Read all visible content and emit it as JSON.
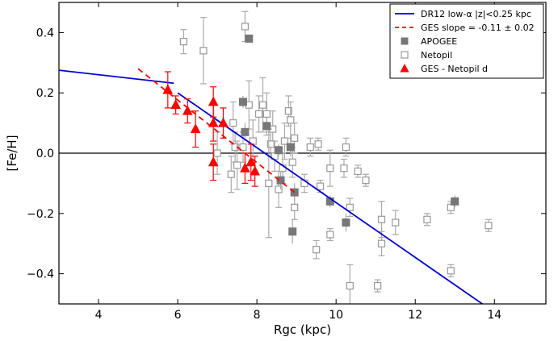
{
  "chart_data": {
    "type": "scatter",
    "xlabel": "Rgc (kpc)",
    "ylabel": "[Fe/H]",
    "xlim": [
      3,
      15.3
    ],
    "ylim": [
      -0.5,
      0.5
    ],
    "x_ticks": [
      4,
      6,
      8,
      10,
      12,
      14
    ],
    "y_ticks": [
      -0.4,
      -0.2,
      0.0,
      0.2,
      0.4
    ],
    "x_tick_labels": [
      "4",
      "6",
      "8",
      "10",
      "12",
      "14"
    ],
    "y_tick_labels": [
      "−0.4",
      "−0.2",
      "0.0",
      "0.2",
      "0.4"
    ],
    "zero_line": true,
    "legend_position": "top-right",
    "colors": {
      "dr12": "#0000dd",
      "ges": "#ff0000",
      "apogee": "#777777",
      "netopil": "#999999",
      "errorbar": "#aaaaaa"
    },
    "series": [
      {
        "name": "DR12 low-α |z|<0.25 kpc",
        "kind": "line",
        "segments": [
          [
            [
              3.0,
              0.275
            ],
            [
              5.9,
              0.232
            ]
          ],
          [
            [
              6.0,
              0.2
            ],
            [
              13.75,
              -0.505
            ]
          ]
        ]
      },
      {
        "name": "GES slope = -0.11 ± 0.02",
        "kind": "dashed-line",
        "points": [
          [
            5.0,
            0.28
          ],
          [
            9.0,
            -0.135
          ]
        ]
      },
      {
        "name": "APOGEE",
        "kind": "filled-square",
        "points": [
          {
            "x": 7.8,
            "y": 0.38
          },
          {
            "x": 7.65,
            "y": 0.17,
            "err": 0.02
          },
          {
            "x": 7.7,
            "y": 0.07,
            "err": 0.03
          },
          {
            "x": 8.25,
            "y": 0.09,
            "err": 0.03
          },
          {
            "x": 8.85,
            "y": 0.02,
            "err": 0.03
          },
          {
            "x": 8.55,
            "y": 0.01,
            "err": 0.02
          },
          {
            "x": 8.6,
            "y": -0.09,
            "err": 0.03
          },
          {
            "x": 8.95,
            "y": -0.13,
            "err": 0.03
          },
          {
            "x": 8.9,
            "y": -0.26,
            "err": 0.04
          },
          {
            "x": 9.85,
            "y": -0.16,
            "err": 0.02
          },
          {
            "x": 10.25,
            "y": -0.23,
            "err": 0.03
          },
          {
            "x": 13.0,
            "y": -0.16,
            "err": 0.02
          }
        ]
      },
      {
        "name": "Netopil",
        "kind": "open-square",
        "points": [
          {
            "x": 6.15,
            "y": 0.37,
            "err": 0.04
          },
          {
            "x": 6.65,
            "y": 0.34,
            "err": 0.11
          },
          {
            "x": 7.7,
            "y": 0.42,
            "err": 0.05
          },
          {
            "x": 7.8,
            "y": 0.16,
            "err": 0.08
          },
          {
            "x": 7.4,
            "y": 0.1,
            "err": 0.07
          },
          {
            "x": 7.45,
            "y": 0.02,
            "err": 0.05
          },
          {
            "x": 7.0,
            "y": 0.0,
            "err": 0.07
          },
          {
            "x": 7.35,
            "y": -0.07,
            "err": 0.06
          },
          {
            "x": 7.5,
            "y": -0.04,
            "err": 0.08
          },
          {
            "x": 7.65,
            "y": 0.02,
            "err": 0.05
          },
          {
            "x": 7.9,
            "y": 0.04,
            "err": 0.07
          },
          {
            "x": 8.05,
            "y": 0.13,
            "err": 0.06
          },
          {
            "x": 8.15,
            "y": 0.16,
            "err": 0.09
          },
          {
            "x": 8.25,
            "y": 0.13,
            "err": 0.07
          },
          {
            "x": 8.4,
            "y": 0.08,
            "err": 0.06
          },
          {
            "x": 8.35,
            "y": 0.03,
            "err": 0.04
          },
          {
            "x": 8.45,
            "y": -0.01,
            "err": 0.05
          },
          {
            "x": 8.3,
            "y": -0.1,
            "err": 0.18
          },
          {
            "x": 8.55,
            "y": -0.12,
            "err": 0.06
          },
          {
            "x": 8.65,
            "y": -0.05,
            "err": 0.05
          },
          {
            "x": 8.7,
            "y": 0.04,
            "err": 0.06
          },
          {
            "x": 8.8,
            "y": 0.14,
            "err": 0.05
          },
          {
            "x": 8.85,
            "y": 0.11,
            "err": 0.06
          },
          {
            "x": 8.95,
            "y": 0.05,
            "err": 0.05
          },
          {
            "x": 8.9,
            "y": -0.03,
            "err": 0.05
          },
          {
            "x": 8.95,
            "y": -0.18,
            "err": 0.04
          },
          {
            "x": 9.2,
            "y": -0.1,
            "err": 0.03
          },
          {
            "x": 9.35,
            "y": 0.02,
            "err": 0.03
          },
          {
            "x": 9.55,
            "y": 0.03,
            "err": 0.02
          },
          {
            "x": 9.6,
            "y": -0.11,
            "err": 0.02
          },
          {
            "x": 9.5,
            "y": -0.32,
            "err": 0.03
          },
          {
            "x": 9.85,
            "y": -0.05,
            "err": 0.06
          },
          {
            "x": 9.85,
            "y": -0.27,
            "err": 0.02
          },
          {
            "x": 10.25,
            "y": 0.02,
            "err": 0.03
          },
          {
            "x": 10.2,
            "y": -0.05,
            "err": 0.03
          },
          {
            "x": 10.35,
            "y": -0.18,
            "err": 0.03
          },
          {
            "x": 10.35,
            "y": -0.44,
            "err": 0.07
          },
          {
            "x": 10.55,
            "y": -0.06,
            "err": 0.02
          },
          {
            "x": 10.75,
            "y": -0.09,
            "err": 0.02
          },
          {
            "x": 11.15,
            "y": -0.22,
            "err": 0.06
          },
          {
            "x": 11.15,
            "y": -0.3,
            "err": 0.04
          },
          {
            "x": 11.05,
            "y": -0.44,
            "err": 0.02
          },
          {
            "x": 11.5,
            "y": -0.23,
            "err": 0.04
          },
          {
            "x": 12.3,
            "y": -0.22,
            "err": 0.02
          },
          {
            "x": 12.9,
            "y": -0.18,
            "err": 0.02
          },
          {
            "x": 12.9,
            "y": -0.39,
            "err": 0.02
          },
          {
            "x": 13.85,
            "y": -0.24,
            "err": 0.02
          }
        ]
      },
      {
        "name": "GES - Netopil d",
        "kind": "triangle",
        "points": [
          {
            "x": 5.75,
            "y": 0.21,
            "err": 0.06
          },
          {
            "x": 5.95,
            "y": 0.16,
            "err": 0.03
          },
          {
            "x": 6.25,
            "y": 0.14,
            "err": 0.04
          },
          {
            "x": 6.45,
            "y": 0.08,
            "err": 0.06
          },
          {
            "x": 6.9,
            "y": 0.17,
            "err": 0.05
          },
          {
            "x": 6.9,
            "y": 0.1,
            "err": 0.06
          },
          {
            "x": 7.15,
            "y": 0.1,
            "err": 0.05
          },
          {
            "x": 6.9,
            "y": -0.03,
            "err": 0.06
          },
          {
            "x": 7.7,
            "y": -0.05,
            "err": 0.05
          },
          {
            "x": 7.85,
            "y": -0.03,
            "err": 0.06
          },
          {
            "x": 7.95,
            "y": -0.06,
            "err": 0.05
          }
        ]
      }
    ],
    "legend": [
      {
        "label": "DR12 low-α |z|<0.25 kpc",
        "kind": "line"
      },
      {
        "label": "GES slope = -0.11 ± 0.02",
        "kind": "dashed-line"
      },
      {
        "label": "APOGEE",
        "kind": "filled-square"
      },
      {
        "label": "Netopil",
        "kind": "open-square"
      },
      {
        "label": "GES - Netopil d",
        "kind": "triangle"
      }
    ]
  }
}
